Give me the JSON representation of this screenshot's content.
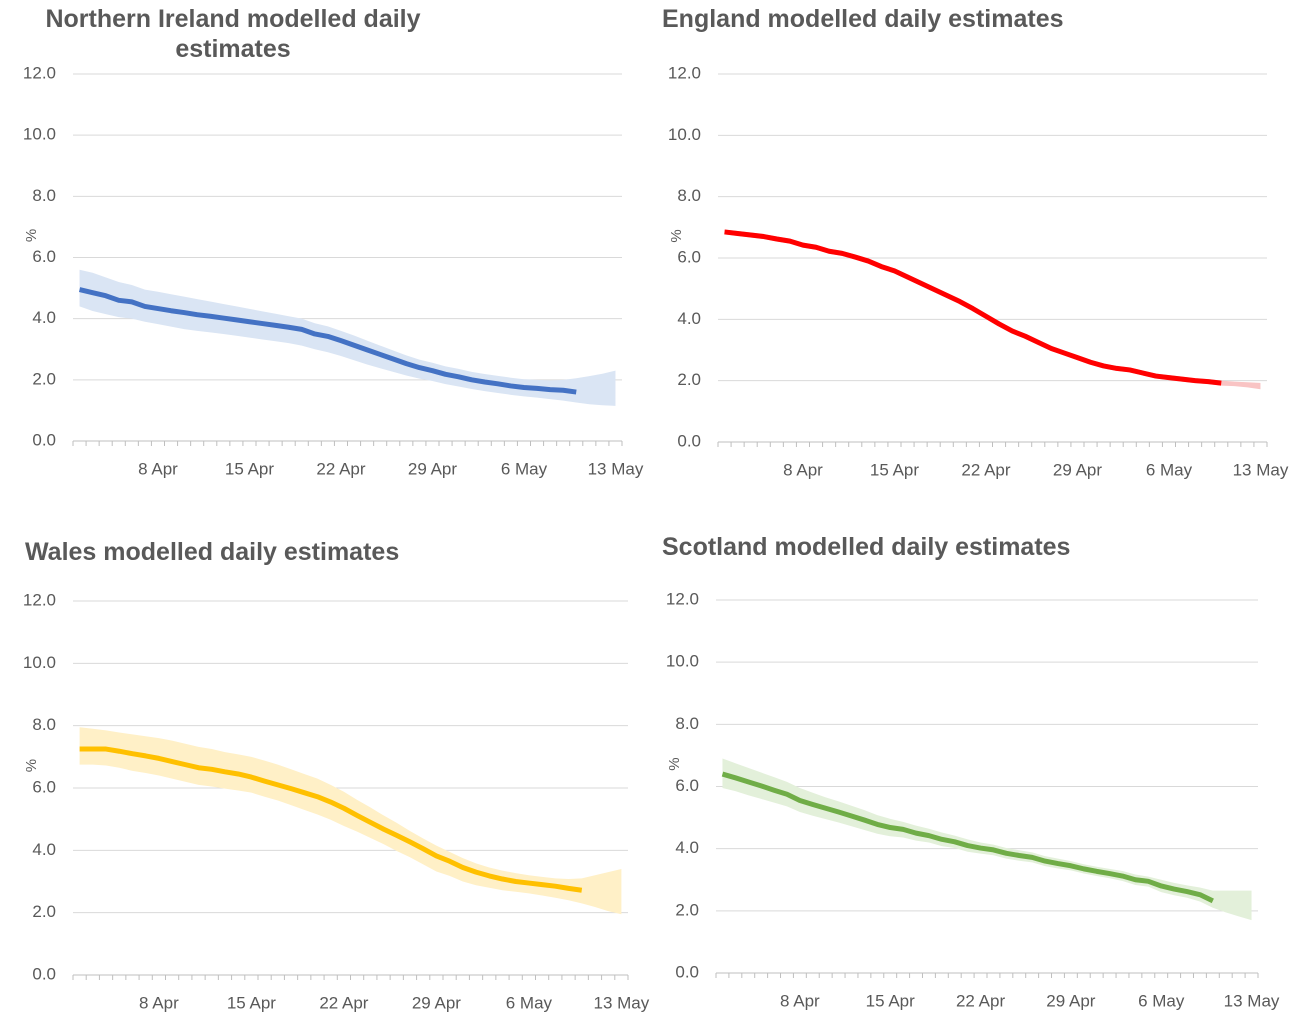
{
  "chart_data": [
    {
      "type": "line",
      "title": "Northern Ireland modelled daily estimates",
      "ylabel": "%",
      "categories": [
        null,
        null,
        null,
        null,
        null,
        null,
        "8 Apr",
        null,
        null,
        null,
        null,
        null,
        null,
        "15 Apr",
        null,
        null,
        null,
        null,
        null,
        null,
        "22 Apr",
        null,
        null,
        null,
        null,
        null,
        null,
        "29 Apr",
        null,
        null,
        null,
        null,
        null,
        null,
        "6 May",
        null,
        null,
        null,
        null,
        null,
        null,
        "13 May"
      ],
      "ylim": [
        0,
        12
      ],
      "yticks": [
        {
          "value": 0,
          "label": "0.0"
        },
        {
          "value": 2,
          "label": "2.0"
        },
        {
          "value": 4,
          "label": "4.0"
        },
        {
          "value": 6,
          "label": "6.0"
        },
        {
          "value": 8,
          "label": "8.0"
        },
        {
          "value": 10,
          "label": "10.0"
        },
        {
          "value": 12,
          "label": "12.0"
        }
      ],
      "grid": true,
      "series": [
        {
          "color": "#4472c4",
          "band_color": "#dae5f4",
          "values": [
            4.95,
            4.85,
            4.75,
            4.6,
            4.55,
            4.4,
            4.33,
            4.26,
            4.2,
            4.13,
            4.08,
            4.02,
            3.96,
            3.9,
            3.84,
            3.78,
            3.72,
            3.65,
            3.5,
            3.42,
            3.28,
            3.13,
            2.98,
            2.83,
            2.68,
            2.53,
            2.4,
            2.3,
            2.18,
            2.1,
            2.0,
            1.93,
            1.87,
            1.8,
            1.75,
            1.72,
            1.68,
            1.66,
            1.6,
            null,
            null,
            null
          ],
          "band_upper": [
            5.6,
            5.5,
            5.35,
            5.2,
            5.1,
            4.95,
            4.88,
            4.8,
            4.72,
            4.64,
            4.56,
            4.48,
            4.4,
            4.32,
            4.24,
            4.16,
            4.08,
            4.0,
            3.85,
            3.75,
            3.6,
            3.45,
            3.28,
            3.12,
            2.96,
            2.8,
            2.66,
            2.56,
            2.44,
            2.36,
            2.26,
            2.19,
            2.13,
            2.07,
            2.02,
            2.0,
            1.98,
            2.0,
            2.05,
            2.12,
            2.2,
            2.3
          ],
          "band_lower": [
            4.4,
            4.25,
            4.15,
            4.05,
            4.0,
            3.9,
            3.82,
            3.74,
            3.66,
            3.6,
            3.55,
            3.5,
            3.44,
            3.38,
            3.32,
            3.26,
            3.2,
            3.12,
            3.0,
            2.9,
            2.78,
            2.64,
            2.5,
            2.38,
            2.26,
            2.14,
            2.04,
            1.96,
            1.86,
            1.78,
            1.7,
            1.63,
            1.57,
            1.51,
            1.46,
            1.42,
            1.37,
            1.32,
            1.26,
            1.2,
            1.17,
            1.15
          ]
        }
      ]
    },
    {
      "type": "line",
      "title": "England modelled daily estimates",
      "ylabel": "%",
      "categories": [
        null,
        null,
        null,
        null,
        null,
        null,
        "8 Apr",
        null,
        null,
        null,
        null,
        null,
        null,
        "15 Apr",
        null,
        null,
        null,
        null,
        null,
        null,
        "22 Apr",
        null,
        null,
        null,
        null,
        null,
        null,
        "29 Apr",
        null,
        null,
        null,
        null,
        null,
        null,
        "6 May",
        null,
        null,
        null,
        null,
        null,
        null,
        "13 May"
      ],
      "ylim": [
        0,
        12
      ],
      "yticks": [
        {
          "value": 0,
          "label": "0.0"
        },
        {
          "value": 2,
          "label": "2.0"
        },
        {
          "value": 4,
          "label": "4.0"
        },
        {
          "value": 6,
          "label": "6.0"
        },
        {
          "value": 8,
          "label": "8.0"
        },
        {
          "value": 10,
          "label": "10.0"
        },
        {
          "value": 12,
          "label": "12.0"
        }
      ],
      "grid": true,
      "series": [
        {
          "color": "#ff0000",
          "band_color": "#f9c4c4",
          "values": [
            6.85,
            6.8,
            6.75,
            6.7,
            6.62,
            6.55,
            6.42,
            6.35,
            6.22,
            6.15,
            6.03,
            5.9,
            5.72,
            5.58,
            5.38,
            5.18,
            4.98,
            4.78,
            4.58,
            4.35,
            4.1,
            3.85,
            3.62,
            3.45,
            3.25,
            3.05,
            2.9,
            2.75,
            2.6,
            2.48,
            2.4,
            2.35,
            2.25,
            2.15,
            2.1,
            2.05,
            2.0,
            1.97,
            1.92,
            null,
            null,
            null
          ],
          "band_upper": [
            6.93,
            6.88,
            6.83,
            6.78,
            6.7,
            6.63,
            6.5,
            6.43,
            6.3,
            6.23,
            6.11,
            5.98,
            5.8,
            5.66,
            5.46,
            5.26,
            5.06,
            4.86,
            4.66,
            4.43,
            4.18,
            3.93,
            3.7,
            3.53,
            3.33,
            3.13,
            2.98,
            2.83,
            2.68,
            2.56,
            2.48,
            2.43,
            2.33,
            2.23,
            2.18,
            2.13,
            2.08,
            2.05,
            2.0,
            1.97,
            1.95,
            1.93
          ],
          "band_lower": [
            6.77,
            6.72,
            6.67,
            6.62,
            6.54,
            6.47,
            6.34,
            6.27,
            6.14,
            6.07,
            5.95,
            5.82,
            5.64,
            5.5,
            5.3,
            5.1,
            4.9,
            4.7,
            4.5,
            4.27,
            4.02,
            3.77,
            3.54,
            3.37,
            3.17,
            2.97,
            2.82,
            2.67,
            2.52,
            2.4,
            2.32,
            2.27,
            2.17,
            2.07,
            2.02,
            1.97,
            1.92,
            1.89,
            1.84,
            1.82,
            1.78,
            1.72
          ]
        }
      ]
    },
    {
      "type": "line",
      "title": "Wales modelled daily estimates",
      "ylabel": "%",
      "categories": [
        null,
        null,
        null,
        null,
        null,
        null,
        "8 Apr",
        null,
        null,
        null,
        null,
        null,
        null,
        "15 Apr",
        null,
        null,
        null,
        null,
        null,
        null,
        "22 Apr",
        null,
        null,
        null,
        null,
        null,
        null,
        "29 Apr",
        null,
        null,
        null,
        null,
        null,
        null,
        "6 May",
        null,
        null,
        null,
        null,
        null,
        null,
        "13 May"
      ],
      "ylim": [
        0,
        12
      ],
      "yticks": [
        {
          "value": 0,
          "label": "0.0"
        },
        {
          "value": 2,
          "label": "2.0"
        },
        {
          "value": 4,
          "label": "4.0"
        },
        {
          "value": 6,
          "label": "6.0"
        },
        {
          "value": 8,
          "label": "8.0"
        },
        {
          "value": 10,
          "label": "10.0"
        },
        {
          "value": 12,
          "label": "12.0"
        }
      ],
      "grid": true,
      "series": [
        {
          "color": "#ffc000",
          "band_color": "#fff0c7",
          "values": [
            7.25,
            7.25,
            7.25,
            7.18,
            7.1,
            7.03,
            6.95,
            6.85,
            6.75,
            6.65,
            6.6,
            6.52,
            6.45,
            6.35,
            6.22,
            6.1,
            5.98,
            5.85,
            5.72,
            5.55,
            5.35,
            5.12,
            4.9,
            4.68,
            4.48,
            4.27,
            4.05,
            3.82,
            3.65,
            3.45,
            3.3,
            3.18,
            3.08,
            3.0,
            2.95,
            2.9,
            2.85,
            2.78,
            2.72,
            null,
            null,
            null
          ],
          "band_upper": [
            7.95,
            7.9,
            7.85,
            7.78,
            7.72,
            7.66,
            7.6,
            7.52,
            7.42,
            7.32,
            7.25,
            7.15,
            7.08,
            7.0,
            6.88,
            6.75,
            6.6,
            6.45,
            6.3,
            6.1,
            5.88,
            5.62,
            5.38,
            5.12,
            4.88,
            4.62,
            4.38,
            4.15,
            3.95,
            3.75,
            3.58,
            3.45,
            3.35,
            3.27,
            3.2,
            3.15,
            3.1,
            3.08,
            3.1,
            3.2,
            3.3,
            3.4
          ],
          "band_lower": [
            6.75,
            6.75,
            6.72,
            6.65,
            6.55,
            6.48,
            6.4,
            6.3,
            6.2,
            6.1,
            6.05,
            5.98,
            5.92,
            5.85,
            5.72,
            5.6,
            5.45,
            5.3,
            5.15,
            4.98,
            4.78,
            4.6,
            4.4,
            4.2,
            3.98,
            3.78,
            3.55,
            3.32,
            3.18,
            3.0,
            2.88,
            2.8,
            2.72,
            2.67,
            2.62,
            2.55,
            2.48,
            2.4,
            2.3,
            2.18,
            2.05,
            1.95
          ]
        }
      ]
    },
    {
      "type": "line",
      "title": "Scotland modelled daily estimates",
      "ylabel": "%",
      "categories": [
        null,
        null,
        null,
        null,
        null,
        null,
        "8 Apr",
        null,
        null,
        null,
        null,
        null,
        null,
        "15 Apr",
        null,
        null,
        null,
        null,
        null,
        null,
        "22 Apr",
        null,
        null,
        null,
        null,
        null,
        null,
        "29 Apr",
        null,
        null,
        null,
        null,
        null,
        null,
        "6 May",
        null,
        null,
        null,
        null,
        null,
        null,
        "13 May"
      ],
      "ylim": [
        0,
        12
      ],
      "yticks": [
        {
          "value": 0,
          "label": "0.0"
        },
        {
          "value": 2,
          "label": "2.0"
        },
        {
          "value": 4,
          "label": "4.0"
        },
        {
          "value": 6,
          "label": "6.0"
        },
        {
          "value": 8,
          "label": "8.0"
        },
        {
          "value": 10,
          "label": "10.0"
        },
        {
          "value": 12,
          "label": "12.0"
        }
      ],
      "grid": true,
      "series": [
        {
          "color": "#70ad47",
          "band_color": "#e3f0da",
          "values": [
            6.4,
            6.28,
            6.15,
            6.02,
            5.88,
            5.75,
            5.55,
            5.42,
            5.3,
            5.18,
            5.05,
            4.92,
            4.78,
            4.68,
            4.62,
            4.5,
            4.42,
            4.3,
            4.22,
            4.1,
            4.02,
            3.96,
            3.85,
            3.78,
            3.72,
            3.6,
            3.52,
            3.45,
            3.35,
            3.27,
            3.2,
            3.12,
            3.0,
            2.95,
            2.8,
            2.7,
            2.62,
            2.52,
            2.32,
            null,
            null,
            null
          ],
          "band_upper": [
            6.9,
            6.75,
            6.6,
            6.45,
            6.3,
            6.15,
            5.95,
            5.8,
            5.65,
            5.52,
            5.38,
            5.24,
            5.08,
            4.96,
            4.86,
            4.74,
            4.64,
            4.52,
            4.42,
            4.3,
            4.2,
            4.13,
            4.02,
            3.95,
            3.88,
            3.76,
            3.68,
            3.6,
            3.5,
            3.42,
            3.35,
            3.28,
            3.17,
            3.1,
            3.0,
            2.9,
            2.82,
            2.75,
            2.65,
            2.65,
            2.65,
            2.65
          ],
          "band_lower": [
            5.95,
            5.85,
            5.72,
            5.6,
            5.48,
            5.36,
            5.18,
            5.06,
            4.95,
            4.84,
            4.72,
            4.6,
            4.48,
            4.4,
            4.36,
            4.26,
            4.2,
            4.08,
            4.02,
            3.9,
            3.84,
            3.79,
            3.68,
            3.61,
            3.56,
            3.44,
            3.36,
            3.3,
            3.2,
            3.12,
            3.05,
            2.96,
            2.83,
            2.78,
            2.6,
            2.5,
            2.42,
            2.3,
            2.1,
            1.95,
            1.82,
            1.7
          ]
        }
      ]
    }
  ]
}
